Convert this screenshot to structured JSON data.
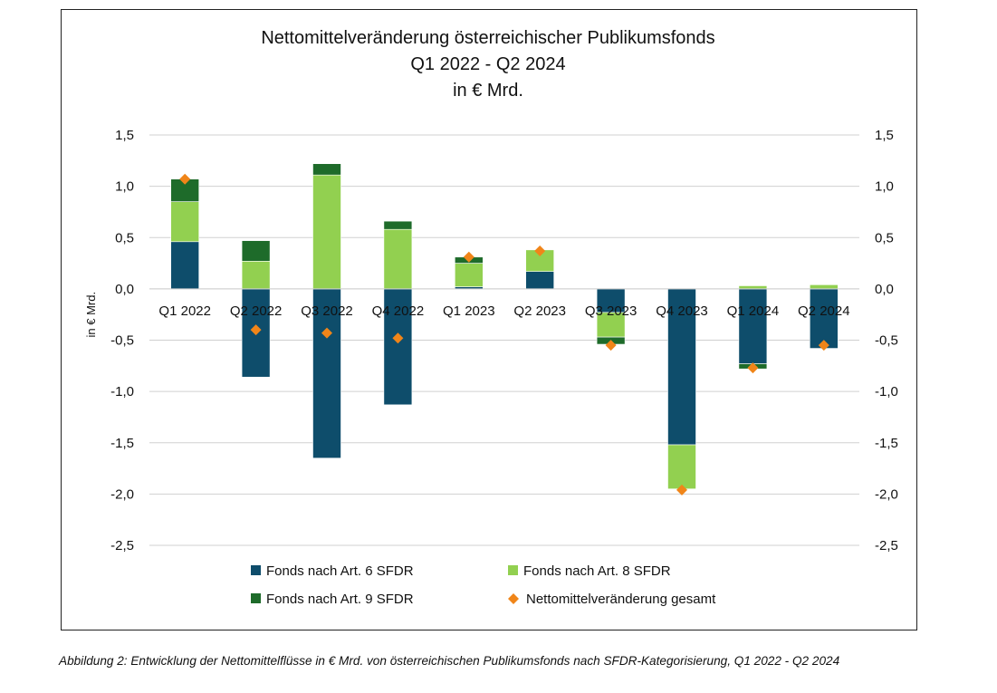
{
  "chart_data": {
    "type": "bar",
    "stacked": true,
    "title_lines": [
      "Nettomittelveränderung österreichischer Publikumsfonds",
      "Q1 2022 - Q2 2024",
      "in € Mrd."
    ],
    "ylabel": "in € Mrd.",
    "ylim": [
      -2.5,
      1.5
    ],
    "y_ticks": [
      "1,5",
      "1,0",
      "0,5",
      "0,0",
      "-0,5",
      "-1,0",
      "-1,5",
      "-2,0",
      "-2,5"
    ],
    "y_tick_values": [
      1.5,
      1.0,
      0.5,
      0.0,
      -0.5,
      -1.0,
      -1.5,
      -2.0,
      -2.5
    ],
    "secondary_axis": true,
    "grid": true,
    "legend_position": "bottom",
    "categories": [
      "Q1 2022",
      "Q2 2022",
      "Q3 2022",
      "Q4 2022",
      "Q1 2023",
      "Q2 2023",
      "Q3 2023",
      "Q4 2023",
      "Q1 2024",
      "Q2 2024"
    ],
    "series": [
      {
        "name": "Fonds nach Art. 6 SFDR",
        "kind": "bar",
        "color": "#0e4d6b",
        "values": [
          0.46,
          -0.86,
          -1.65,
          -1.13,
          0.02,
          0.17,
          -0.23,
          -1.52,
          -0.73,
          -0.58
        ]
      },
      {
        "name": "Fonds nach Art. 8 SFDR",
        "kind": "bar",
        "color": "#92d050",
        "values": [
          0.39,
          0.27,
          1.11,
          0.58,
          0.23,
          0.21,
          -0.24,
          -0.43,
          0.03,
          0.04
        ]
      },
      {
        "name": "Fonds nach Art. 9 SFDR",
        "kind": "bar",
        "color": "#1e6b2a",
        "values": [
          0.22,
          0.2,
          0.11,
          0.08,
          0.06,
          0.0,
          -0.07,
          0.0,
          -0.05,
          0.0
        ]
      },
      {
        "name": "Nettomittelveränderung gesamt",
        "kind": "marker",
        "color": "#f08519",
        "values": [
          1.07,
          -0.4,
          -0.43,
          -0.48,
          0.31,
          0.37,
          -0.55,
          -1.96,
          -0.77,
          -0.55
        ]
      }
    ]
  },
  "caption": "Abbildung 2: Entwicklung der Nettomittelflüsse in € Mrd. von österreichischen Publikumsfonds nach SFDR-Kategorisierung, Q1 2022 - Q2 2024"
}
